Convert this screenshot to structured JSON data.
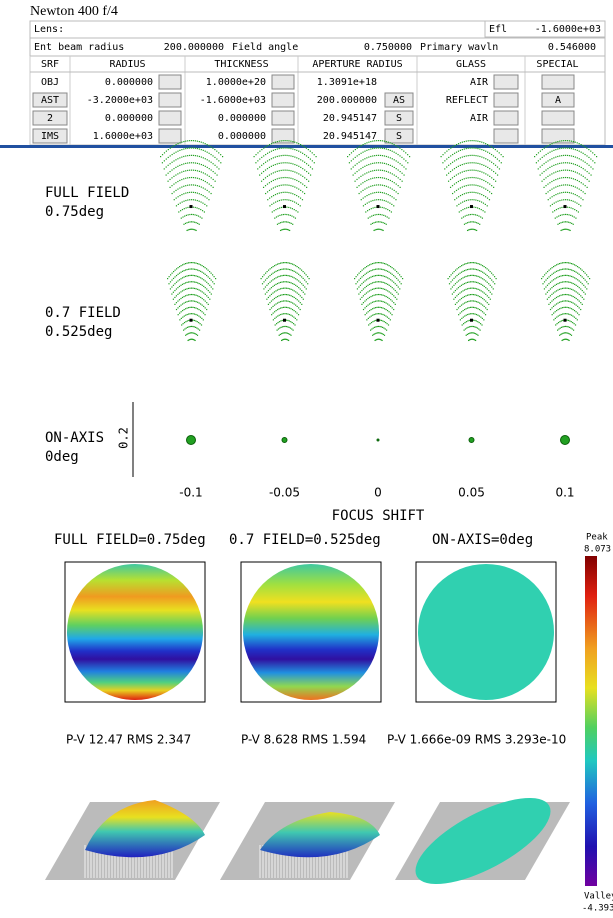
{
  "header": {
    "title": "Newton 400 f/4",
    "lens_label": "Lens:",
    "efl_label": "Efl",
    "efl": "-1.6000e+03"
  },
  "params": [
    {
      "label": "Ent beam radius",
      "value": "200.000000"
    },
    {
      "label": "Field angle",
      "value": "0.750000"
    },
    {
      "label": "Primary wavln",
      "value": "0.546000"
    }
  ],
  "table": {
    "columns": [
      "SRF",
      "RADIUS",
      "THICKNESS",
      "APERTURE RADIUS",
      "GLASS",
      "SPECIAL"
    ],
    "rows": [
      {
        "srf": "OBJ",
        "radius": "0.000000",
        "thickness": "1.0000e+20",
        "aperture": "1.3091e+18",
        "glass": "AIR"
      },
      {
        "srf": "AST",
        "radius": "-3.2000e+03",
        "thickness": "-1.6000e+03",
        "aperture": "200.000000",
        "aperture_flag": "AS",
        "glass": "REFLECT",
        "special": "A"
      },
      {
        "srf": "2",
        "radius": "0.000000",
        "thickness": "0.000000",
        "aperture": "20.945147",
        "aperture_flag": "S",
        "glass": "AIR"
      },
      {
        "srf": "IMS",
        "radius": "1.6000e+03",
        "thickness": "0.000000",
        "aperture": "20.945147",
        "aperture_flag": "S"
      }
    ]
  },
  "spot": {
    "fields": [
      {
        "name": "FULL FIELD",
        "angle": "0.75deg"
      },
      {
        "name": "0.7 FIELD",
        "angle": "0.525deg"
      },
      {
        "name": "ON-AXIS",
        "angle": "0deg"
      }
    ],
    "scale": "0.2",
    "xticks": [
      -0.1,
      -0.05,
      0,
      0.05,
      0.1
    ],
    "xlabel": "FOCUS SHIFT"
  },
  "wavefront": {
    "maps": [
      {
        "title": "FULL FIELD=0.75deg",
        "stats": "P-V 12.47 RMS 2.347"
      },
      {
        "title": "0.7 FIELD=0.525deg",
        "stats": "P-V 8.628 RMS 1.594"
      },
      {
        "title": "ON-AXIS=0deg",
        "stats": "P-V 1.666e-09 RMS 3.293e-10"
      }
    ],
    "colorbar": {
      "top_label": "Peak",
      "peak": "8.073",
      "bottom_label": "Valley",
      "valley": "-4.393"
    }
  }
}
